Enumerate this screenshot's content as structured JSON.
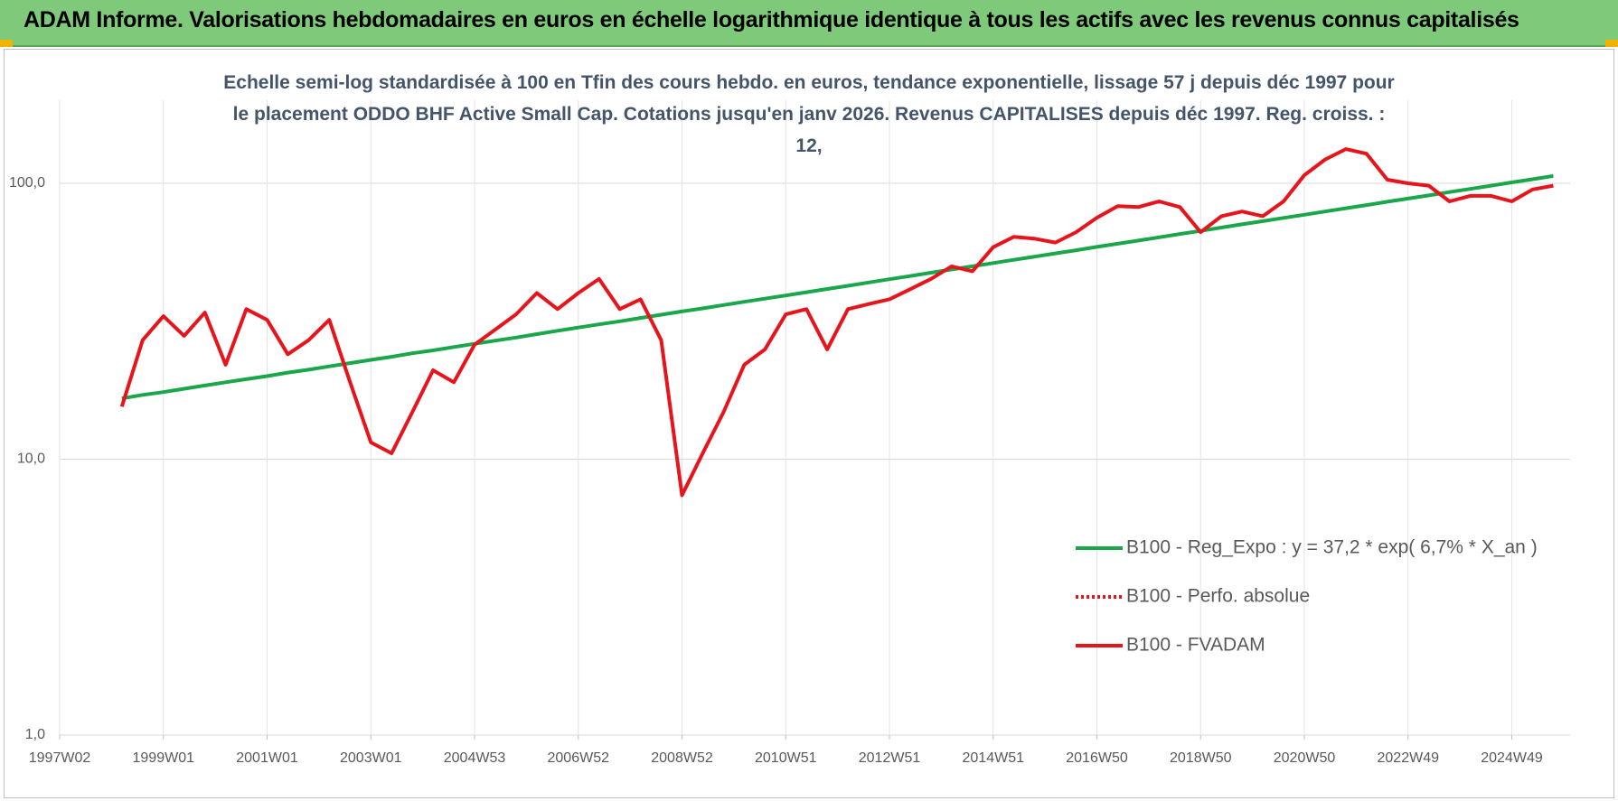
{
  "chart_data": {
    "type": "line",
    "title": "ADAM Informe. Valorisations hebdomadaires en euros en échelle logarithmique identique à tous les actifs avec les revenus connus capitalisés",
    "subtitle": "Echelle semi-log standardisée à 100 en Tfin des cours hebdo. en euros, tendance exponentielle, lissage 57 j depuis déc 1997 pour le placement ODDO BHF Active Small Cap. Cotations jusqu'en janv 2026. Revenus CAPITALISES depuis déc 1997. Reg. croiss. : 12,",
    "categories": [
      "1997W02",
      null,
      null,
      null,
      null,
      "1999W01",
      null,
      null,
      null,
      null,
      "2001W01",
      null,
      null,
      null,
      null,
      "2003W01",
      null,
      null,
      null,
      null,
      "2004W53",
      null,
      null,
      null,
      null,
      "2006W52",
      null,
      null,
      null,
      null,
      "2008W52",
      null,
      null,
      null,
      null,
      "2010W51",
      null,
      null,
      null,
      null,
      "2012W51",
      null,
      null,
      null,
      null,
      "2014W51",
      null,
      null,
      null,
      null,
      "2016W50",
      null,
      null,
      null,
      null,
      "2018W50",
      null,
      null,
      null,
      null,
      "2020W50",
      null,
      null,
      null,
      null,
      "2022W49",
      null,
      null,
      null,
      null,
      "2024W49",
      null,
      null
    ],
    "log_y": true,
    "grid": true,
    "legend": "right",
    "ylim": [
      1,
      200
    ],
    "yticks": [
      {
        "value": 1,
        "label": "1,0"
      },
      {
        "value": 10,
        "label": "10,0"
      },
      {
        "value": 100,
        "label": "100,0"
      }
    ],
    "series": [
      {
        "name": "B100 - Reg_Expo : y = 37,2 * exp( 6,7% *  X_an )",
        "color": "#1aa64a",
        "style": "solid",
        "values": [
          null,
          null,
          null,
          16.6,
          17.1,
          17.5,
          18.0,
          18.5,
          19.0,
          19.5,
          20.0,
          20.6,
          21.1,
          21.7,
          22.3,
          22.9,
          23.5,
          24.2,
          24.8,
          25.5,
          26.2,
          26.9,
          27.6,
          28.4,
          29.2,
          30.0,
          30.8,
          31.6,
          32.5,
          33.4,
          34.3,
          35.2,
          36.2,
          37.2,
          38.2,
          39.2,
          40.3,
          41.4,
          42.5,
          43.7,
          44.9,
          46.1,
          47.4,
          48.7,
          50.0,
          51.4,
          52.8,
          54.2,
          55.7,
          57.2,
          58.8,
          60.4,
          62.0,
          63.7,
          65.5,
          67.2,
          69.1,
          71.0,
          72.9,
          74.9,
          76.9,
          79.0,
          81.2,
          83.4,
          85.7,
          88.0,
          90.4,
          92.9,
          95.4,
          98.0,
          100.7,
          103.4,
          106.3
        ]
      },
      {
        "name": "B100 - Perfo. absolue",
        "color": "#e8141b",
        "style": "dotted",
        "values": [
          null,
          null,
          null,
          null,
          null,
          null,
          null,
          null,
          null,
          null,
          null,
          null,
          null,
          null,
          null,
          null,
          null,
          null,
          null,
          null,
          null,
          null,
          null,
          null,
          null,
          null,
          null,
          null,
          null,
          null,
          null,
          null,
          null,
          null,
          null,
          null,
          null,
          null,
          null,
          null,
          null,
          null,
          null,
          null,
          null,
          null,
          null,
          null,
          null,
          null,
          null,
          null,
          null,
          null,
          null,
          null,
          null,
          null,
          null,
          null,
          null,
          null,
          null,
          null,
          null,
          null,
          null,
          null,
          null,
          null,
          null,
          null,
          null
        ]
      },
      {
        "name": "B100 - FVADAM",
        "color": "#e8141b",
        "style": "solid",
        "values": [
          null,
          null,
          null,
          15.5,
          27,
          33,
          28,
          34,
          22,
          35,
          32,
          24,
          27,
          32,
          19,
          11.5,
          10.5,
          14.8,
          21,
          19,
          26,
          29.5,
          33.5,
          40,
          35,
          40,
          45,
          35,
          38,
          27,
          7.4,
          10.5,
          14.8,
          22,
          25,
          33.5,
          35,
          25,
          35,
          36.5,
          38,
          41.3,
          45,
          50,
          48,
          58.7,
          64,
          63,
          61,
          66.5,
          75,
          82.7,
          82,
          86,
          82,
          66.5,
          76,
          79,
          76,
          86,
          107,
          122,
          133,
          128,
          103,
          100,
          98,
          86,
          90,
          90,
          86,
          95,
          98
        ]
      }
    ]
  }
}
